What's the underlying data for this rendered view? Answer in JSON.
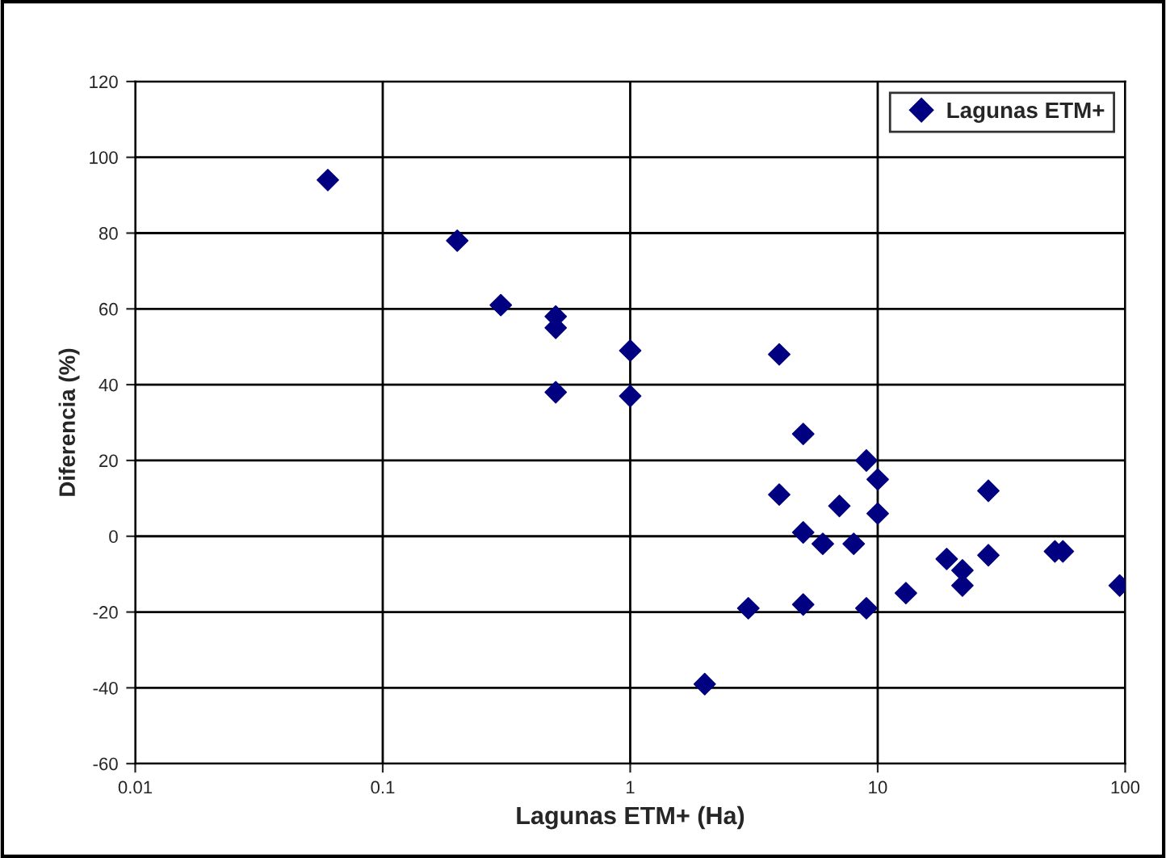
{
  "chart_data": {
    "type": "scatter",
    "xlabel": "Lagunas ETM+ (Ha)",
    "ylabel": "Diferencia (%)",
    "log": "x",
    "xlim": [
      0.01,
      100
    ],
    "xticks": [
      0.01,
      0.1,
      1,
      10,
      100
    ],
    "ylim": [
      -60,
      120
    ],
    "yticks": [
      -60,
      -40,
      -20,
      0,
      20,
      40,
      60,
      80,
      100,
      120
    ],
    "grid": true,
    "legend": "top right",
    "marker": "diamond",
    "series": [
      {
        "name": "Lagunas ETM+",
        "color": "#000080",
        "x": [
          0.06,
          0.2,
          0.3,
          0.5,
          0.5,
          0.5,
          1,
          1,
          4,
          5,
          4,
          7,
          10,
          9,
          10,
          5,
          6,
          8,
          3,
          5,
          9,
          2,
          13,
          19,
          22,
          22,
          28,
          28,
          52,
          56,
          95
        ],
        "values": [
          94,
          78,
          61,
          58,
          55,
          38,
          49,
          37,
          48,
          27,
          11,
          8,
          15,
          20,
          6,
          1,
          -2,
          -2,
          -19,
          -18,
          -19,
          -39,
          -15,
          -6,
          -9,
          -13,
          -5,
          12,
          -4,
          -4,
          -13
        ]
      }
    ]
  }
}
